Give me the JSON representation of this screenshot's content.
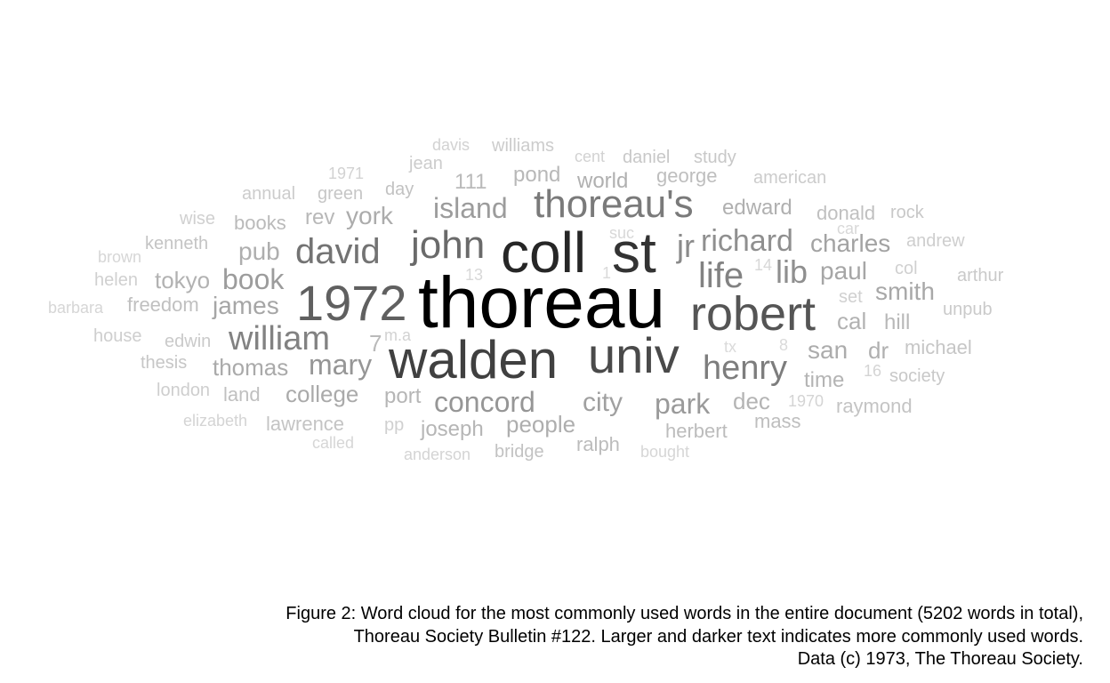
{
  "word_cloud": {
    "words": [
      {
        "text": "thoreau",
        "w": 100,
        "c": "#000000"
      },
      {
        "text": "coll",
        "w": 70,
        "c": "#262626"
      },
      {
        "text": "st",
        "w": 70,
        "c": "#333333"
      },
      {
        "text": "walden",
        "w": 68,
        "c": "#404040"
      },
      {
        "text": "univ",
        "w": 62,
        "c": "#4a4a4a"
      },
      {
        "text": "robert",
        "w": 58,
        "c": "#555555"
      },
      {
        "text": "1972",
        "w": 54,
        "c": "#606060"
      },
      {
        "text": "john",
        "w": 48,
        "c": "#6a6a6a"
      },
      {
        "text": "david",
        "w": 44,
        "c": "#737373"
      },
      {
        "text": "thoreau's",
        "w": 44,
        "c": "#7a7a7a"
      },
      {
        "text": "henry",
        "w": 40,
        "c": "#7d7d7d"
      },
      {
        "text": "life",
        "w": 40,
        "c": "#828282"
      },
      {
        "text": "william",
        "w": 40,
        "c": "#828282"
      },
      {
        "text": "jr",
        "w": 36,
        "c": "#8a8a8a"
      },
      {
        "text": "richard",
        "w": 34,
        "c": "#8f8f8f"
      },
      {
        "text": "lib",
        "w": 34,
        "c": "#8f8f8f"
      },
      {
        "text": "concord",
        "w": 32,
        "c": "#969696"
      },
      {
        "text": "mary",
        "w": 32,
        "c": "#969696"
      },
      {
        "text": "park",
        "w": 32,
        "c": "#9a9a9a"
      },
      {
        "text": "book",
        "w": 32,
        "c": "#9c9c9c"
      },
      {
        "text": "island",
        "w": 32,
        "c": "#9c9c9c"
      },
      {
        "text": "city",
        "w": 30,
        "c": "#a0a0a0"
      },
      {
        "text": "charles",
        "w": 28,
        "c": "#a3a3a3"
      },
      {
        "text": "paul",
        "w": 28,
        "c": "#a6a6a6"
      },
      {
        "text": "james",
        "w": 28,
        "c": "#a6a6a6"
      },
      {
        "text": "smith",
        "w": 28,
        "c": "#a8a8a8"
      },
      {
        "text": "thomas",
        "w": 26,
        "c": "#aaaaaa"
      },
      {
        "text": "college",
        "w": 26,
        "c": "#aaaaaa"
      },
      {
        "text": "san",
        "w": 28,
        "c": "#acacac"
      },
      {
        "text": "york",
        "w": 28,
        "c": "#acacac"
      },
      {
        "text": "people",
        "w": 26,
        "c": "#aeaeae"
      },
      {
        "text": "pub",
        "w": 28,
        "c": "#aeaeae"
      },
      {
        "text": "edward",
        "w": 24,
        "c": "#b0b0b0"
      },
      {
        "text": "dr",
        "w": 26,
        "c": "#b0b0b0"
      },
      {
        "text": "world",
        "w": 24,
        "c": "#b0b0b0"
      },
      {
        "text": "tokyo",
        "w": 26,
        "c": "#b2b2b2"
      },
      {
        "text": "cal",
        "w": 26,
        "c": "#b2b2b2"
      },
      {
        "text": "dec",
        "w": 26,
        "c": "#b4b4b4"
      },
      {
        "text": "time",
        "w": 24,
        "c": "#b4b4b4"
      },
      {
        "text": "port",
        "w": 24,
        "c": "#b6b6b6"
      },
      {
        "text": "joseph",
        "w": 24,
        "c": "#b6b6b6"
      },
      {
        "text": "rev",
        "w": 24,
        "c": "#b8b8b8"
      },
      {
        "text": "hill",
        "w": 24,
        "c": "#b8b8b8"
      },
      {
        "text": "pond",
        "w": 24,
        "c": "#b8b8b8"
      },
      {
        "text": "111",
        "w": 24,
        "c": "#bababa"
      },
      {
        "text": "books",
        "w": 22,
        "c": "#bababa"
      },
      {
        "text": "7",
        "w": 26,
        "c": "#bababa"
      },
      {
        "text": "herbert",
        "w": 22,
        "c": "#bcbcbc"
      },
      {
        "text": "ralph",
        "w": 22,
        "c": "#bcbcbc"
      },
      {
        "text": "george",
        "w": 22,
        "c": "#bebebe"
      },
      {
        "text": "mass",
        "w": 22,
        "c": "#bebebe"
      },
      {
        "text": "land",
        "w": 22,
        "c": "#c0c0c0"
      },
      {
        "text": "donald",
        "w": 22,
        "c": "#c0c0c0"
      },
      {
        "text": "freedom",
        "w": 22,
        "c": "#c0c0c0"
      },
      {
        "text": "bridge",
        "w": 20,
        "c": "#c2c2c2"
      },
      {
        "text": "day",
        "w": 20,
        "c": "#c2c2c2"
      },
      {
        "text": "kenneth",
        "w": 20,
        "c": "#c4c4c4"
      },
      {
        "text": "lawrence",
        "w": 22,
        "c": "#c4c4c4"
      },
      {
        "text": "raymond",
        "w": 22,
        "c": "#c4c4c4"
      },
      {
        "text": "green",
        "w": 20,
        "c": "#c6c6c6"
      },
      {
        "text": "michael",
        "w": 22,
        "c": "#c6c6c6"
      },
      {
        "text": "thesis",
        "w": 20,
        "c": "#c6c6c6"
      },
      {
        "text": "daniel",
        "w": 20,
        "c": "#c8c8c8"
      },
      {
        "text": "study",
        "w": 20,
        "c": "#c8c8c8"
      },
      {
        "text": "society",
        "w": 20,
        "c": "#c8c8c8"
      },
      {
        "text": "rock",
        "w": 20,
        "c": "#c8c8c8"
      },
      {
        "text": "edwin",
        "w": 20,
        "c": "#cacaca"
      },
      {
        "text": "unpub",
        "w": 20,
        "c": "#cacaca"
      },
      {
        "text": "arthur",
        "w": 20,
        "c": "#cacaca"
      },
      {
        "text": "american",
        "w": 20,
        "c": "#cccccc"
      },
      {
        "text": "annual",
        "w": 20,
        "c": "#cccccc"
      },
      {
        "text": "williams",
        "w": 20,
        "c": "#cccccc"
      },
      {
        "text": "jean",
        "w": 20,
        "c": "#cccccc"
      },
      {
        "text": "london",
        "w": 20,
        "c": "#cecece"
      },
      {
        "text": "andrew",
        "w": 20,
        "c": "#cecece"
      },
      {
        "text": "house",
        "w": 20,
        "c": "#cecece"
      },
      {
        "text": "wise",
        "w": 20,
        "c": "#d0d0d0"
      },
      {
        "text": "helen",
        "w": 20,
        "c": "#d0d0d0"
      },
      {
        "text": "col",
        "w": 20,
        "c": "#d0d0d0"
      },
      {
        "text": "set",
        "w": 20,
        "c": "#d0d0d0"
      },
      {
        "text": "pp",
        "w": 20,
        "c": "#d0d0d0"
      },
      {
        "text": "cent",
        "w": 18,
        "c": "#d2d2d2"
      },
      {
        "text": "davis",
        "w": 18,
        "c": "#d2d2d2"
      },
      {
        "text": "1971",
        "w": 18,
        "c": "#d2d2d2"
      },
      {
        "text": "m.a",
        "w": 18,
        "c": "#d2d2d2"
      },
      {
        "text": "16",
        "w": 18,
        "c": "#d4d4d4"
      },
      {
        "text": "1970",
        "w": 18,
        "c": "#d4d4d4"
      },
      {
        "text": "elizabeth",
        "w": 18,
        "c": "#d4d4d4"
      },
      {
        "text": "anderson",
        "w": 18,
        "c": "#d4d4d4"
      },
      {
        "text": "bought",
        "w": 18,
        "c": "#d6d6d6"
      },
      {
        "text": "called",
        "w": 18,
        "c": "#d6d6d6"
      },
      {
        "text": "brown",
        "w": 18,
        "c": "#d6d6d6"
      },
      {
        "text": "barbara",
        "w": 18,
        "c": "#d6d6d6"
      },
      {
        "text": "suc",
        "w": 18,
        "c": "#d8d8d8"
      },
      {
        "text": "car",
        "w": 18,
        "c": "#d8d8d8"
      },
      {
        "text": "14",
        "w": 18,
        "c": "#d8d8d8"
      },
      {
        "text": "13",
        "w": 18,
        "c": "#d8d8d8"
      },
      {
        "text": "1",
        "w": 18,
        "c": "#dadada"
      },
      {
        "text": "tx",
        "w": 18,
        "c": "#dadada"
      },
      {
        "text": "8",
        "w": 18,
        "c": "#dadada"
      }
    ]
  },
  "caption": {
    "line1": "Figure 2: Word cloud for the most commonly used words in the entire document (5202 words in total),",
    "line2": "Thoreau Society Bulletin #122. Larger and darker text indicates more commonly used words.",
    "line3": "Data (c) 1973, The Thoreau Society."
  }
}
